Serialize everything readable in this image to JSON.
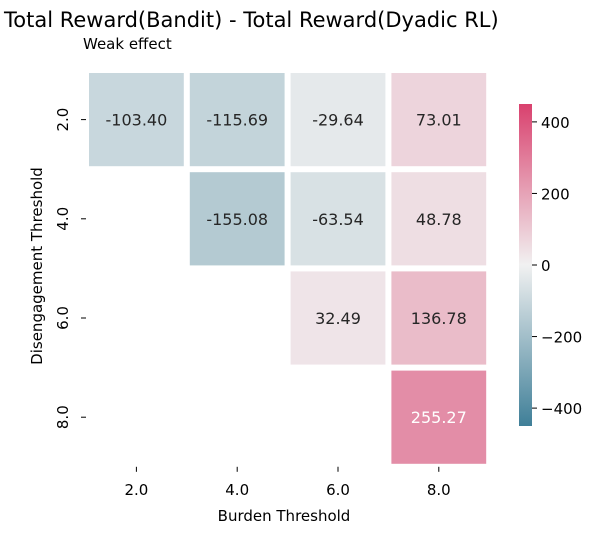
{
  "chart_data": {
    "type": "heatmap",
    "title": "Total Reward(Bandit) - Total Reward(Dyadic RL)",
    "subtitle": "Weak effect",
    "xlabel": "Burden Threshold",
    "ylabel": "Disengagement Threshold",
    "x_categories": [
      "2.0",
      "4.0",
      "6.0",
      "8.0"
    ],
    "y_categories": [
      "2.0",
      "4.0",
      "6.0",
      "8.0"
    ],
    "cells": [
      {
        "x": "2.0",
        "y": "2.0",
        "value": -103.4,
        "label": "-103.40"
      },
      {
        "x": "4.0",
        "y": "2.0",
        "value": -115.69,
        "label": "-115.69"
      },
      {
        "x": "6.0",
        "y": "2.0",
        "value": -29.64,
        "label": "-29.64"
      },
      {
        "x": "8.0",
        "y": "2.0",
        "value": 73.01,
        "label": "73.01"
      },
      {
        "x": "4.0",
        "y": "4.0",
        "value": -155.08,
        "label": "-155.08"
      },
      {
        "x": "6.0",
        "y": "4.0",
        "value": -63.54,
        "label": "-63.54"
      },
      {
        "x": "8.0",
        "y": "4.0",
        "value": 48.78,
        "label": "48.78"
      },
      {
        "x": "6.0",
        "y": "6.0",
        "value": 32.49,
        "label": "32.49"
      },
      {
        "x": "8.0",
        "y": "6.0",
        "value": 136.78,
        "label": "136.78"
      },
      {
        "x": "8.0",
        "y": "8.0",
        "value": 255.27,
        "label": "255.27"
      }
    ],
    "colorbar": {
      "range": [
        -450,
        450
      ],
      "ticks": [
        400,
        200,
        0,
        -200,
        -400
      ],
      "tick_labels": [
        "400",
        "200",
        "0",
        "−200",
        "−400"
      ],
      "color_low": "#3f7f98",
      "color_mid": "#f1f1f1",
      "color_high": "#d9416e"
    },
    "grid": false,
    "legend": "colorbar-right"
  }
}
